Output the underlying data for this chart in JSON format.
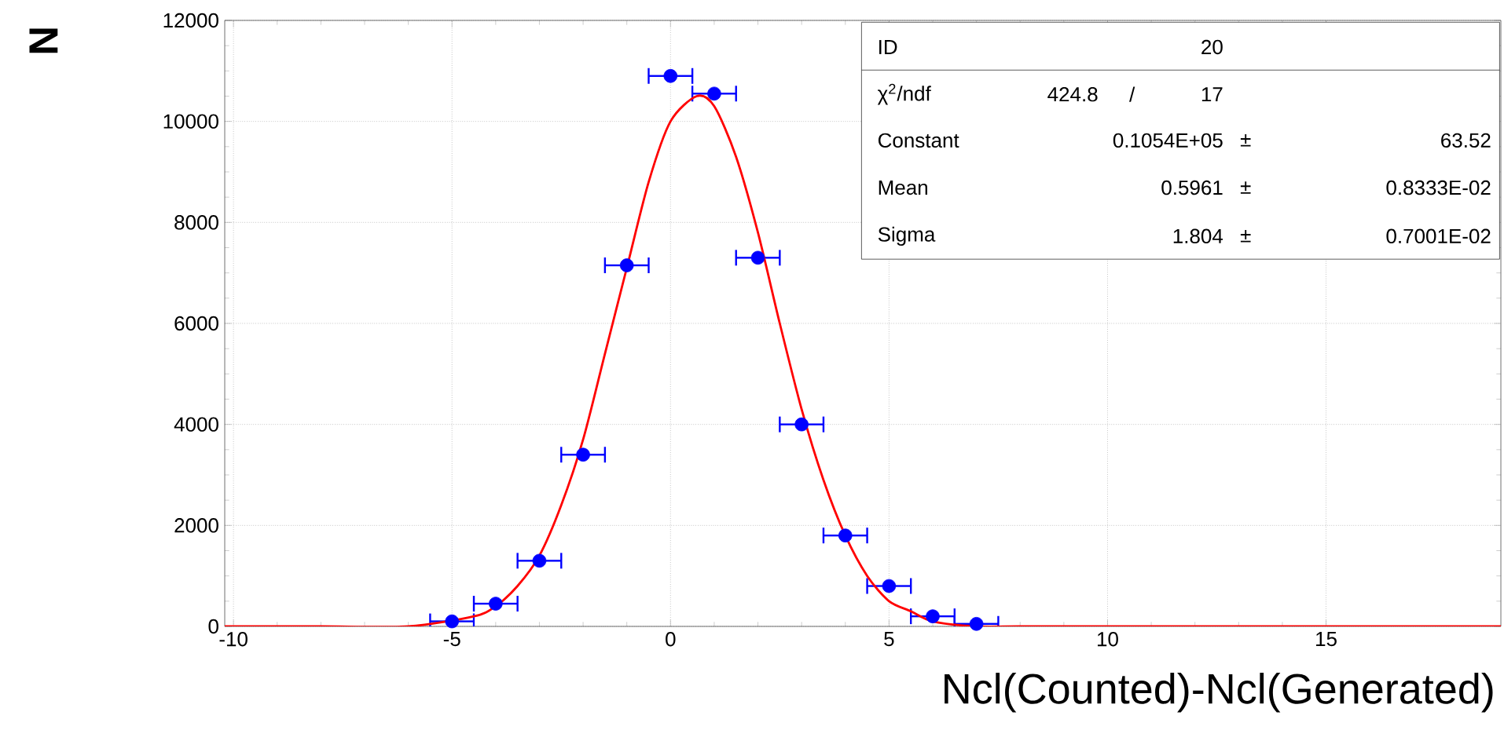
{
  "chart_data": {
    "type": "scatter",
    "xlabel": "Ncl(Counted)-Ncl(Generated)",
    "ylabel": "N",
    "xlim": [
      -10.2,
      19
    ],
    "ylim": [
      0,
      12000
    ],
    "xticks": [
      -10,
      -5,
      0,
      5,
      10,
      15
    ],
    "yticks": [
      0,
      2000,
      4000,
      6000,
      8000,
      10000,
      12000
    ],
    "grid": true,
    "series": [
      {
        "color": "#0000ff",
        "marker": "circle",
        "x": [
          -5,
          -4,
          -3,
          -2,
          -1,
          0,
          1,
          2,
          3,
          4,
          5,
          6,
          7
        ],
        "values": [
          100,
          450,
          1300,
          3400,
          7150,
          10900,
          10550,
          7300,
          4000,
          1800,
          800,
          200,
          50
        ],
        "xerrors": [
          0.5,
          0.5,
          0.5,
          0.5,
          0.5,
          0.5,
          0.5,
          0.5,
          0.5,
          0.5,
          0.5,
          0.5,
          0.5
        ]
      },
      {
        "type": "line",
        "color": "#ff0000",
        "marker": "none",
        "x": [
          -10.2,
          -8,
          -6,
          -4.5,
          -4,
          -3.5,
          -3,
          -2.5,
          -2,
          -1.5,
          -1,
          -0.5,
          0,
          0.6,
          1,
          1.5,
          2,
          2.5,
          3,
          3.5,
          4,
          4.5,
          5,
          5.5,
          6,
          7,
          8,
          10,
          19
        ],
        "values": [
          0,
          0,
          0,
          200,
          400,
          800,
          1400,
          2400,
          3700,
          5400,
          7100,
          8800,
          10000,
          10500,
          10300,
          9300,
          7800,
          6000,
          4300,
          2900,
          1800,
          1000,
          500,
          300,
          100,
          0,
          0,
          0,
          0
        ]
      }
    ],
    "annotations": [
      "ID",
      "20",
      "χ$^{2}$/ndf",
      "424.8",
      "/",
      "17",
      "Constant",
      "0.1054E+05",
      "±",
      "63.52",
      "Mean",
      "0.5961",
      "±",
      "0.8333E-02",
      "Sigma",
      "1.804",
      "±",
      "0.7001E-02"
    ]
  }
}
